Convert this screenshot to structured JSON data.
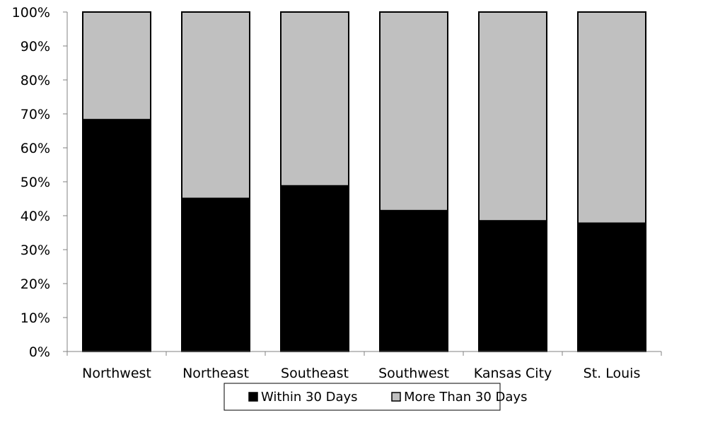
{
  "chart_data": {
    "type": "bar",
    "stacked": "percent",
    "categories": [
      "Northwest",
      "Northeast",
      "Southeast",
      "Southwest",
      "Kansas City",
      "St. Louis"
    ],
    "series": [
      {
        "name": "Within 30 Days",
        "values": [
          68.3,
          45.1,
          48.8,
          41.5,
          38.5,
          37.8
        ],
        "color": "#000000"
      },
      {
        "name": "More Than 30 Days",
        "values": [
          31.7,
          54.9,
          51.2,
          58.5,
          61.5,
          62.2
        ],
        "color": "#c0c0c0"
      }
    ],
    "ylim": [
      0,
      100
    ],
    "yticks": [
      "0%",
      "10%",
      "20%",
      "30%",
      "40%",
      "50%",
      "60%",
      "70%",
      "80%",
      "90%",
      "100%"
    ],
    "grid": false,
    "legend_position": "bottom"
  }
}
